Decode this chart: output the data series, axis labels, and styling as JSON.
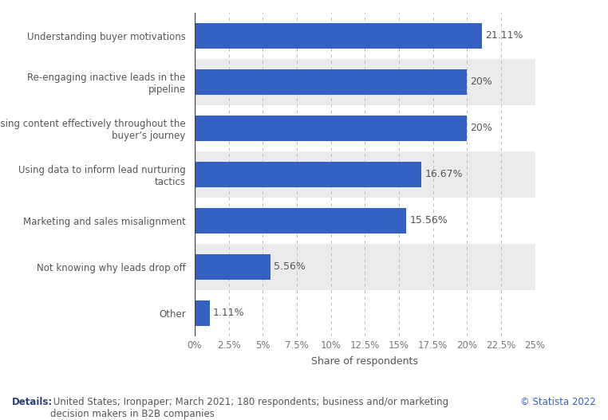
{
  "categories": [
    "Other",
    "Not knowing why leads drop off",
    "Marketing and sales misalignment",
    "Using data to inform lead nurturing\ntactics",
    "Using content effectively throughout the\nbuyer’s journey",
    "Re-engaging inactive leads in the\npipeline",
    "Understanding buyer motivations"
  ],
  "values": [
    1.11,
    5.56,
    15.56,
    16.67,
    20.0,
    20.0,
    21.11
  ],
  "labels": [
    "1.11%",
    "5.56%",
    "15.56%",
    "16.67%",
    "20%",
    "20%",
    "21.11%"
  ],
  "bar_color": "#3461c1",
  "stripe_color": "#ebebeb",
  "bar_height": 0.55,
  "xlabel": "Share of respondents",
  "xlim": [
    0,
    25
  ],
  "xticks": [
    0,
    2.5,
    5,
    7.5,
    10,
    12.5,
    15,
    17.5,
    20,
    22.5,
    25
  ],
  "xtick_labels": [
    "0%",
    "2.5%",
    "5%",
    "7.5%",
    "10%",
    "12.5%",
    "15%",
    "17.5%",
    "20%",
    "22.5%",
    "25%"
  ],
  "footer_bold": "Details:",
  "footer_text": " United States; Ironpaper; March 2021; 180 respondents; business and/or marketing\ndecision makers in B2B companies",
  "statista_text": "© Statista 2022",
  "background_color": "#ffffff",
  "label_color": "#555555",
  "tick_label_color": "#777777"
}
